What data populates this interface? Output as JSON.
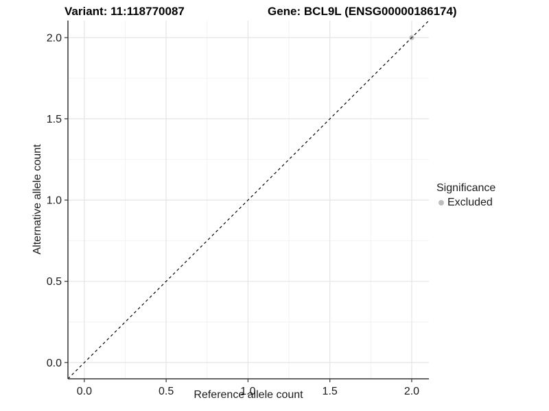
{
  "chart_data": {
    "type": "scatter",
    "title_left": "Variant: 11:118770087",
    "title_right": "Gene: BCL9L (ENSG00000186174)",
    "xlabel": "Reference allele count",
    "ylabel": "Alternative allele count",
    "xlim": [
      -0.1,
      2.105
    ],
    "ylim": [
      -0.1,
      2.105
    ],
    "xticks": [
      0.0,
      0.5,
      1.0,
      1.5,
      2.0
    ],
    "yticks": [
      0.0,
      0.5,
      1.0,
      1.5,
      2.0
    ],
    "xtick_labels": [
      "0.0",
      "0.5",
      "1.0",
      "1.5",
      "2.0"
    ],
    "ytick_labels": [
      "0.0",
      "0.5",
      "1.0",
      "1.5",
      "2.0"
    ],
    "minor_ticks": [
      0.25,
      0.75,
      1.25,
      1.75
    ],
    "grid": true,
    "series": [
      {
        "name": "Excluded",
        "points": [
          {
            "x": 2.0,
            "y": 2.0
          }
        ],
        "color": "#bebebe",
        "marker": "circle"
      }
    ],
    "reference_line": {
      "kind": "identity",
      "x1": -0.1,
      "y1": -0.1,
      "x2": 2.105,
      "y2": 2.105,
      "style": "dashed",
      "color": "#000000"
    },
    "legend": {
      "title": "Significance",
      "position": "right",
      "entries": [
        {
          "label": "Excluded",
          "color": "#bebebe"
        }
      ]
    },
    "colors": {
      "grid_major": "#e4e4e4",
      "grid_minor": "#f2f2f2",
      "axis_line": "#333333",
      "tick_text": "#1a1a1a",
      "point": "#bebebe"
    }
  }
}
